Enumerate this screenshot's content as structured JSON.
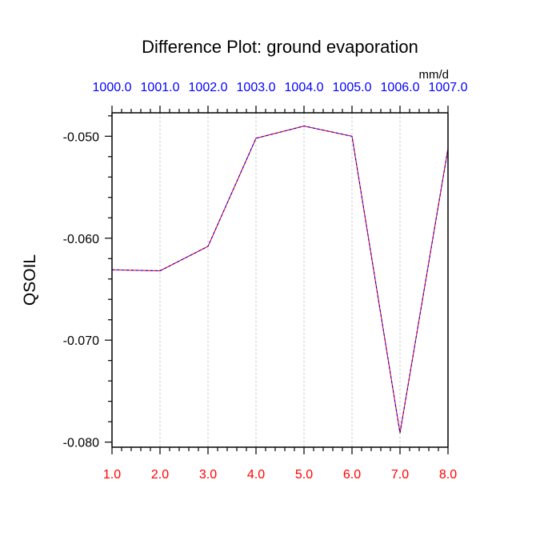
{
  "chart_data": {
    "type": "line",
    "title": "Difference Plot: ground evaporation",
    "units_label": "mm/d",
    "ylabel": "QSOIL",
    "xlabel": "",
    "x": [
      1,
      2,
      3,
      4,
      5,
      6,
      7,
      8
    ],
    "xlim": [
      1,
      8
    ],
    "ylim": [
      -0.0805,
      -0.0477
    ],
    "x_tick_labels": [
      "1.0",
      "2.0",
      "3.0",
      "4.0",
      "5.0",
      "6.0",
      "7.0",
      "8.0"
    ],
    "x_top_tick_labels": [
      "1000.0",
      "1001.0",
      "1002.0",
      "1003.0",
      "1004.0",
      "1005.0",
      "1006.0",
      "1007.0"
    ],
    "y_ticks": [
      -0.05,
      -0.06,
      -0.07,
      -0.08
    ],
    "y_tick_labels": [
      "-0.050",
      "-0.060",
      "-0.070",
      "-0.080"
    ],
    "y_minor_step": 0.002,
    "x_minor_step": 0.2,
    "vertical_grid": true,
    "grid_style": "dotted",
    "series": [
      {
        "values": [
          -0.0631,
          -0.0632,
          -0.0608,
          -0.0502,
          -0.049,
          -0.05,
          -0.0791,
          -0.0512
        ],
        "colors": [
          "#ff0000",
          "#0000ff"
        ],
        "line_style": "dashed"
      }
    ],
    "colors": {
      "bottom_ticks": "#ff0000",
      "top_ticks": "#0000ff",
      "axis": "#000000",
      "grid": "#c8c8c8"
    }
  }
}
